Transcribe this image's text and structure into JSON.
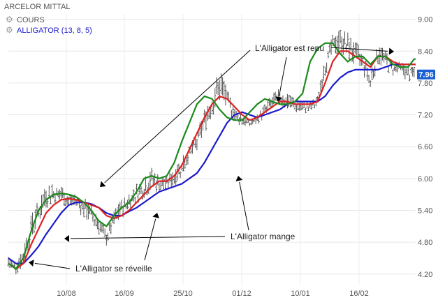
{
  "chart_data": {
    "type": "line",
    "title": "ARCELOR MITTAL",
    "legend": [
      {
        "label": "COURS",
        "color": "#555555"
      },
      {
        "label": "ALLIGATOR (13, 8, 5)",
        "color": "#1a1acc"
      }
    ],
    "ylim": [
      4.0,
      9.1
    ],
    "yticks": [
      4.2,
      4.8,
      5.4,
      6.0,
      6.6,
      7.2,
      7.8,
      8.4,
      9.0
    ],
    "ytick_labels": [
      "4.20",
      "4.80",
      "5.40",
      "6.00",
      "6.60",
      "7.20",
      "7.80",
      "8.40",
      "9.00"
    ],
    "xticks": [
      {
        "label": "10/08",
        "x": 43
      },
      {
        "label": "16/09",
        "x": 79
      },
      {
        "label": "25/10",
        "x": 119
      },
      {
        "label": "01/12",
        "x": 157
      },
      {
        "label": "10/01",
        "x": 197
      },
      {
        "label": "16/02",
        "x": 233
      }
    ],
    "x_count": 270,
    "last_value": "7.96",
    "last_value_color": "#1a5fd6",
    "grid": true,
    "price": {
      "name": "COURS",
      "color": "#555555",
      "x": [
        0,
        5,
        10,
        15,
        20,
        25,
        30,
        35,
        40,
        45,
        50,
        55,
        60,
        65,
        70,
        75,
        80,
        85,
        90,
        95,
        100,
        105,
        110,
        115,
        120,
        125,
        130,
        135,
        140,
        145,
        150,
        155,
        160,
        165,
        170,
        175,
        180,
        185,
        190,
        195,
        200,
        205,
        210,
        215,
        220,
        225,
        230,
        235,
        240,
        245,
        250,
        255,
        260,
        265,
        269
      ],
      "high": [
        4.55,
        4.45,
        4.7,
        5.3,
        5.6,
        5.85,
        5.9,
        5.85,
        5.7,
        5.7,
        5.65,
        5.5,
        5.3,
        5.0,
        5.4,
        5.6,
        5.7,
        5.9,
        6.0,
        6.2,
        6.05,
        6.05,
        6.2,
        6.4,
        6.6,
        6.9,
        7.3,
        7.7,
        8.05,
        7.7,
        7.35,
        7.25,
        7.1,
        7.2,
        7.4,
        7.6,
        7.7,
        7.6,
        7.5,
        7.45,
        7.45,
        7.55,
        8.3,
        8.7,
        8.8,
        8.75,
        8.6,
        8.4,
        8.0,
        8.55,
        8.4,
        8.2,
        8.2,
        8.1,
        8.1
      ],
      "low": [
        4.25,
        4.15,
        4.3,
        4.7,
        5.1,
        5.4,
        5.5,
        5.5,
        5.4,
        5.4,
        5.2,
        5.1,
        4.9,
        4.7,
        5.0,
        5.2,
        5.4,
        5.5,
        5.6,
        5.7,
        5.7,
        5.7,
        5.8,
        6.0,
        6.3,
        6.4,
        6.8,
        7.1,
        7.35,
        7.2,
        7.0,
        6.95,
        6.95,
        7.0,
        7.1,
        7.2,
        7.3,
        7.25,
        7.2,
        7.2,
        7.2,
        7.3,
        7.9,
        8.25,
        8.3,
        8.2,
        8.0,
        7.9,
        7.6,
        8.1,
        8.0,
        7.9,
        7.9,
        7.8,
        7.8
      ]
    },
    "series": [
      {
        "name": "ALLIGATOR (13, 8, 5)",
        "color": "#1a1acc",
        "x": [
          0,
          5,
          10,
          15,
          20,
          25,
          30,
          35,
          40,
          45,
          50,
          55,
          60,
          65,
          70,
          75,
          80,
          85,
          90,
          95,
          100,
          105,
          110,
          115,
          120,
          125,
          130,
          135,
          140,
          145,
          150,
          155,
          160,
          165,
          170,
          175,
          180,
          185,
          190,
          195,
          200,
          205,
          210,
          215,
          220,
          225,
          230,
          235,
          240,
          245,
          250,
          255,
          260,
          265,
          269
        ],
        "values": [
          4.5,
          4.4,
          4.4,
          4.55,
          4.72,
          4.95,
          5.15,
          5.35,
          5.5,
          5.55,
          5.55,
          5.52,
          5.45,
          5.35,
          5.3,
          5.3,
          5.38,
          5.45,
          5.55,
          5.65,
          5.75,
          5.8,
          5.85,
          5.9,
          6.0,
          6.1,
          6.3,
          6.55,
          6.8,
          7.05,
          7.2,
          7.25,
          7.2,
          7.15,
          7.2,
          7.25,
          7.3,
          7.4,
          7.45,
          7.45,
          7.45,
          7.45,
          7.55,
          7.75,
          7.9,
          8.0,
          8.05,
          8.05,
          8.05,
          8.05,
          8.1,
          8.15,
          8.15,
          8.15,
          8.15
        ]
      },
      {
        "name": "",
        "color": "#dd2222",
        "x": [
          0,
          5,
          10,
          15,
          20,
          25,
          30,
          35,
          40,
          45,
          50,
          55,
          60,
          65,
          70,
          75,
          80,
          85,
          90,
          95,
          100,
          105,
          110,
          115,
          120,
          125,
          130,
          135,
          140,
          145,
          150,
          155,
          160,
          165,
          170,
          175,
          180,
          185,
          190,
          195,
          200,
          205,
          210,
          215,
          220,
          225,
          230,
          235,
          240,
          245,
          250,
          255,
          260,
          265,
          269
        ],
        "values": [
          4.4,
          4.3,
          4.4,
          4.75,
          5.05,
          5.35,
          5.5,
          5.6,
          5.62,
          5.6,
          5.55,
          5.5,
          5.45,
          5.3,
          5.25,
          5.3,
          5.4,
          5.55,
          5.7,
          5.85,
          5.95,
          5.95,
          6.05,
          6.25,
          6.55,
          6.85,
          7.15,
          7.4,
          7.55,
          7.5,
          7.35,
          7.2,
          7.1,
          7.15,
          7.25,
          7.35,
          7.45,
          7.45,
          7.4,
          7.4,
          7.4,
          7.45,
          7.8,
          8.2,
          8.4,
          8.4,
          8.3,
          8.2,
          8.1,
          8.3,
          8.3,
          8.2,
          8.15,
          8.15,
          8.15
        ]
      },
      {
        "name": "",
        "color": "#1a8a1a",
        "x": [
          0,
          5,
          10,
          15,
          20,
          25,
          30,
          35,
          40,
          45,
          50,
          55,
          60,
          65,
          70,
          75,
          80,
          85,
          90,
          95,
          100,
          105,
          110,
          115,
          120,
          125,
          130,
          135,
          140,
          145,
          150,
          155,
          160,
          165,
          170,
          175,
          180,
          185,
          190,
          195,
          200,
          205,
          210,
          215,
          220,
          225,
          230,
          235,
          240,
          245,
          250,
          255,
          260,
          265,
          269
        ],
        "values": [
          4.4,
          4.3,
          4.5,
          5.0,
          5.4,
          5.6,
          5.7,
          5.72,
          5.7,
          5.65,
          5.55,
          5.4,
          5.2,
          5.1,
          5.3,
          5.45,
          5.55,
          5.75,
          6.0,
          6.05,
          6.0,
          6.05,
          6.3,
          6.7,
          7.05,
          7.4,
          7.55,
          7.5,
          7.3,
          7.15,
          7.1,
          7.1,
          7.25,
          7.4,
          7.5,
          7.45,
          7.4,
          7.4,
          7.45,
          7.6,
          8.2,
          8.45,
          8.55,
          8.55,
          8.35,
          8.2,
          8.3,
          8.3,
          8.15,
          8.3,
          8.3,
          8.15,
          8.1,
          8.1,
          8.25
        ]
      }
    ],
    "annotations": [
      {
        "text": "L'Alligator est repu"
      },
      {
        "text": "L'Alligator mange"
      },
      {
        "text": "L'Alligator se réveille"
      }
    ]
  }
}
